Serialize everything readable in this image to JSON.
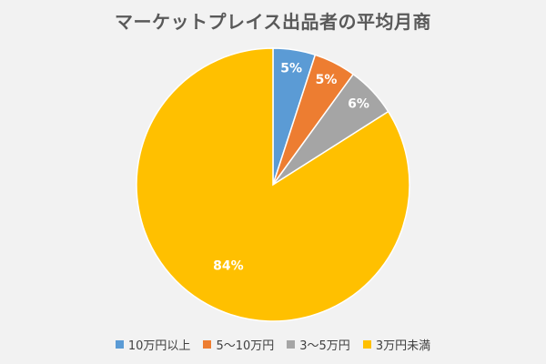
{
  "chart_data": {
    "type": "pie",
    "title": "マーケットプレイス出品者の平均月商",
    "categories": [
      "10万円以上",
      "5～10万円",
      "3～5万円",
      "3万円未満"
    ],
    "values": [
      5,
      5,
      6,
      84
    ],
    "data_labels": [
      "5%",
      "5%",
      "6%",
      "84%"
    ],
    "colors": [
      "#5b9bd5",
      "#ed7d31",
      "#a5a5a5",
      "#ffc000"
    ],
    "legend_position": "bottom",
    "start_angle_deg": 0,
    "direction": "clockwise"
  }
}
